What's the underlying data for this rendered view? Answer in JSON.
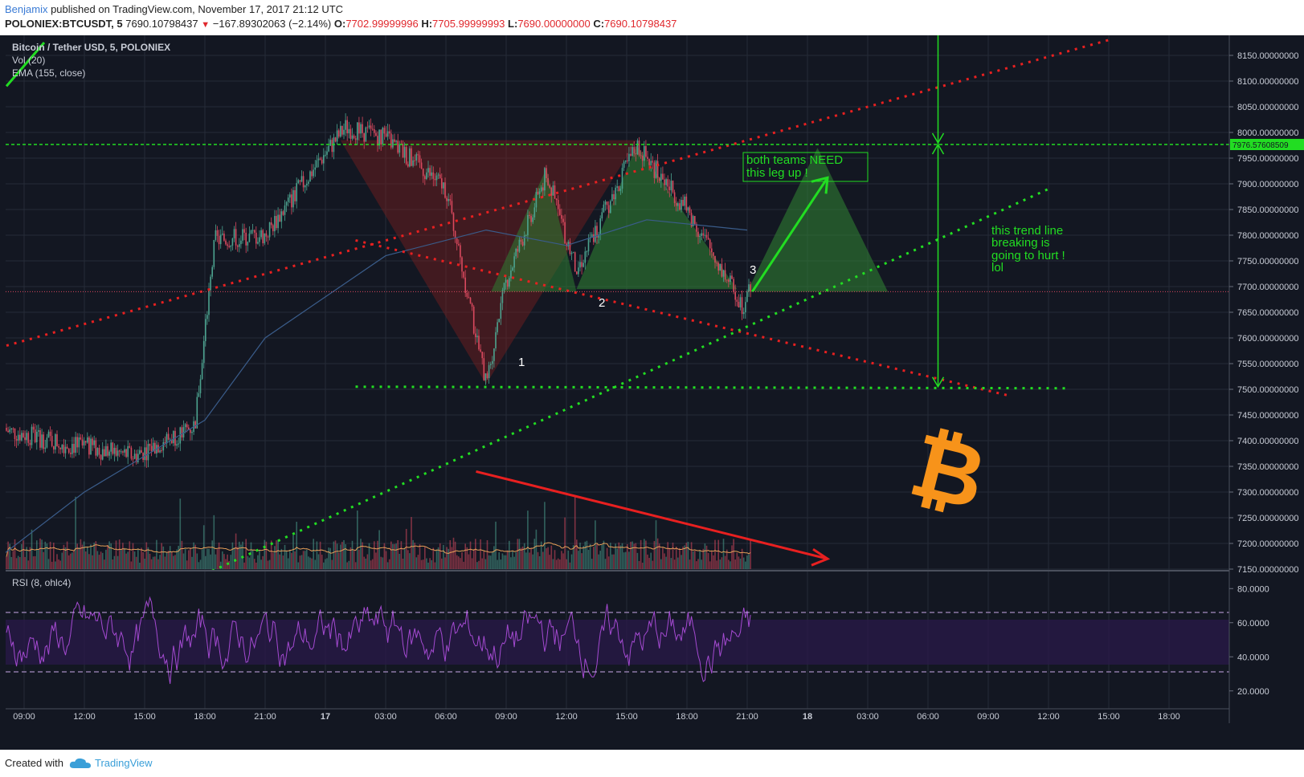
{
  "header": {
    "author": "Benjamix",
    "published": " published on TradingView.com, November 17, 2017 21:12 UTC",
    "symbol": "POLONIEX:BTCUSDT, 5",
    "last": "7690.10798437",
    "change": "−167.89302063 (−2.14%)",
    "o_label": "O:",
    "o_value": "7702.99999996",
    "h_label": "H:",
    "h_value": "7705.99999993",
    "l_label": "L:",
    "l_value": "7690.00000000",
    "c_label": "C:",
    "c_value": "7690.10798437"
  },
  "legend": {
    "title": "Bitcoin / Tether USD, 5, POLONIEX",
    "vol": "Vol (20)",
    "ema": "EMA (155, close)",
    "rsi": "RSI (8, ohlc4)"
  },
  "annotations": {
    "both_teams": [
      "both teams NEED",
      "this leg up !"
    ],
    "trend_note": [
      "this trend line",
      "breaking is",
      "going to hurt !",
      "lol"
    ],
    "point1": "1",
    "point2": "2",
    "point3": "3"
  },
  "footer": {
    "created": "Created with",
    "brand": "TradingView"
  },
  "colors": {
    "background": "#131722",
    "up": "#4ca38f",
    "down": "#d9495e",
    "ema": "#3a5c8a",
    "rsi": "#a44ad1",
    "green_annot": "#22dd22",
    "red_annot": "#e82020",
    "bitcoin": "#f7931a"
  },
  "chart_data": [
    {
      "type": "candlestick",
      "title": "Bitcoin / Tether USD, 5, POLONIEX",
      "x_ticks": [
        "09:00",
        "12:00",
        "15:00",
        "18:00",
        "21:00",
        "17",
        "03:00",
        "06:00",
        "09:00",
        "12:00",
        "15:00",
        "18:00",
        "21:00",
        "18",
        "03:00",
        "06:00",
        "09:00",
        "12:00",
        "15:00",
        "18:00"
      ],
      "y_ticks": [
        "8150.00000000",
        "8100.00000000",
        "8050.00000000",
        "8000.00000000",
        "7950.00000000",
        "7900.00000000",
        "7850.00000000",
        "7800.00000000",
        "7750.00000000",
        "7700.00000000",
        "7650.00000000",
        "7600.00000000",
        "7550.00000000",
        "7500.00000000",
        "7450.00000000",
        "7400.00000000",
        "7350.00000000",
        "7300.00000000",
        "7250.00000000",
        "7200.00000000",
        "7150.00000000"
      ],
      "ylim": [
        7150,
        8180
      ],
      "price_marker": "7976.57608509",
      "key_prices": [
        {
          "time": "07:30",
          "price": 7425
        },
        {
          "time": "11:00",
          "price": 7395
        },
        {
          "time": "14:30",
          "price": 7370
        },
        {
          "time": "17:30",
          "price": 7430
        },
        {
          "time": "18:30",
          "price": 7790
        },
        {
          "time": "21:00",
          "price": 7800
        },
        {
          "time": "00:00",
          "price": 7960
        },
        {
          "time": "01:00",
          "price": 8010
        },
        {
          "time": "03:00",
          "price": 7990
        },
        {
          "time": "06:00",
          "price": 7890
        },
        {
          "time": "08:00",
          "price": 7510
        },
        {
          "time": "09:00",
          "price": 7710
        },
        {
          "time": "11:00",
          "price": 7920
        },
        {
          "time": "12:30",
          "price": 7730
        },
        {
          "time": "15:30",
          "price": 7975
        },
        {
          "time": "18:00",
          "price": 7850
        },
        {
          "time": "20:45",
          "price": 7665
        },
        {
          "time": "21:10",
          "price": 7690
        }
      ],
      "ema_points": [
        {
          "time": "07:30",
          "price": 7165
        },
        {
          "time": "12:00",
          "price": 7300
        },
        {
          "time": "18:00",
          "price": 7440
        },
        {
          "time": "21:00",
          "price": 7600
        },
        {
          "time": "03:00",
          "price": 7760
        },
        {
          "time": "08:00",
          "price": 7810
        },
        {
          "time": "12:00",
          "price": 7780
        },
        {
          "time": "16:00",
          "price": 7830
        },
        {
          "time": "21:00",
          "price": 7810
        }
      ]
    },
    {
      "type": "bar",
      "title": "Vol (20)",
      "note": "volume histogram overlaid at bottom of price pane"
    },
    {
      "type": "line",
      "title": "RSI (8, ohlc4)",
      "y_ticks": [
        "80.0000",
        "60.0000",
        "40.0000",
        "20.0000"
      ],
      "ylim": [
        10,
        90
      ],
      "bands": [
        30,
        70
      ],
      "shaded_zone": [
        40,
        60
      ]
    }
  ]
}
